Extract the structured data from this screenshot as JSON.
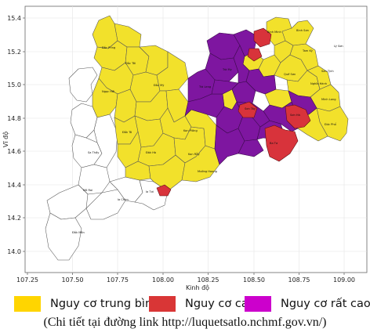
{
  "axes": {
    "xlabel": "Kinh độ",
    "ylabel": "Vĩ độ",
    "x_ticks": [
      "107.25",
      "107.50",
      "107.75",
      "108.00",
      "108.25",
      "108.50",
      "108.75",
      "109.00"
    ],
    "y_ticks": [
      "15.4",
      "15.2",
      "15.0",
      "14.8",
      "14.6",
      "14.4",
      "14.2",
      "14.0"
    ]
  },
  "colors": {
    "medium": "#FFD500",
    "high": "#D93636",
    "very_high": "#CC00CC",
    "map_medium": "#F2E12B",
    "map_high": "#D8333B",
    "map_very_high": "#7E16A0",
    "none": "#FFFFFF",
    "border": "#555555"
  },
  "legend": {
    "items": [
      {
        "label": "Nguy cơ trung bình",
        "color": "#FFD500"
      },
      {
        "label": "Nguy cơ cao",
        "color": "#D93636"
      },
      {
        "label": "Nguy cơ rất cao",
        "color": "#CC00CC"
      }
    ]
  },
  "source_note": "(Chi tiết tại đường link http://luquetsatlo.nchmf.gov.vn/)",
  "district_labels": [
    "Bình Minh",
    "Tam Kỳ",
    "Quế Sơn",
    "Đắc Pring",
    "Đắc Tôi",
    "Đắc Mỹ",
    "Trà My",
    "Trà Leng",
    "Sơn Tây",
    "Ba Tơ",
    "Sơn Hà",
    "Minh Long",
    "Ngọc Hồi",
    "Đắk Tô",
    "Kon Plông",
    "Kon Rẫy",
    "Đăk Hà",
    "Sa Thầy",
    "Mô Rai",
    "Ia Chim",
    "Ia Tơi",
    "Đắk Môn",
    "Mường Hoong",
    "Đức Phổ",
    "Nghĩa Hành",
    "Sơn Tịnh",
    "Bình Sơn",
    "Lý Sơn"
  ]
}
